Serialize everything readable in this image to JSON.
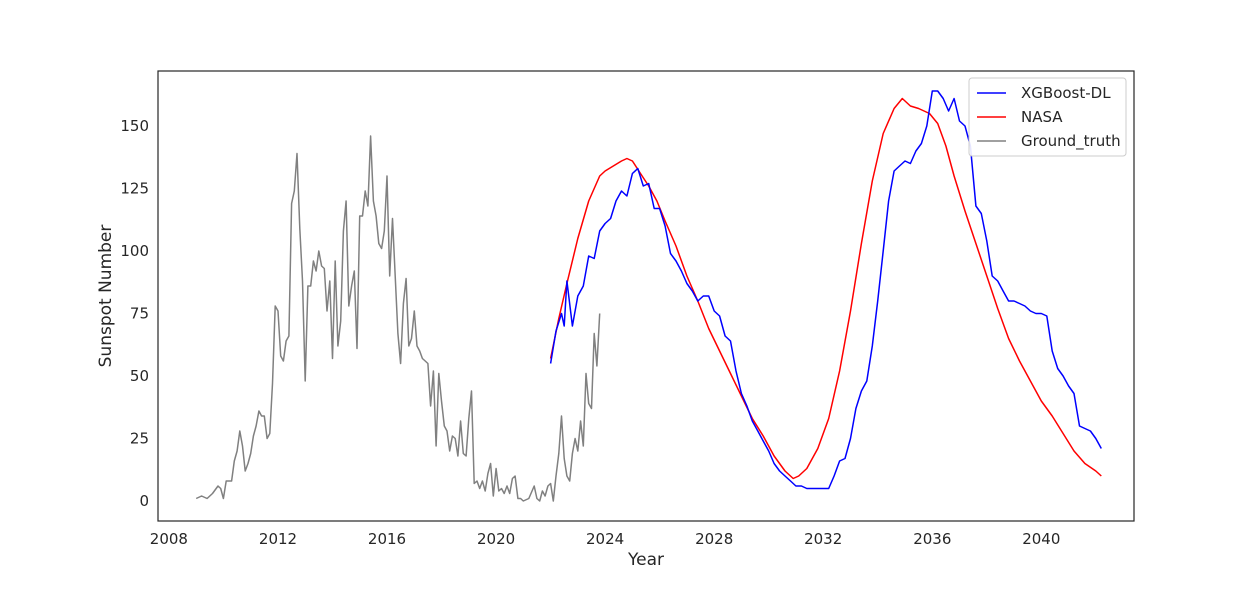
{
  "chart_data": {
    "type": "line",
    "title": "",
    "xlabel": "Year",
    "ylabel": "Sunspot Number",
    "xlim": [
      2007.6,
      2043.4
    ],
    "ylim": [
      -8,
      172
    ],
    "xticks": [
      2008,
      2012,
      2016,
      2020,
      2024,
      2028,
      2032,
      2036,
      2040
    ],
    "yticks": [
      0,
      25,
      50,
      75,
      100,
      125,
      150
    ],
    "grid": false,
    "legend_position": "top-right",
    "series": [
      {
        "name": "XGBoost-DL",
        "color": "#0000ff",
        "points": [
          [
            2022.0,
            55
          ],
          [
            2022.2,
            68
          ],
          [
            2022.4,
            75
          ],
          [
            2022.5,
            70
          ],
          [
            2022.6,
            88
          ],
          [
            2022.8,
            70
          ],
          [
            2023.0,
            82
          ],
          [
            2023.2,
            86
          ],
          [
            2023.4,
            98
          ],
          [
            2023.6,
            97
          ],
          [
            2023.8,
            108
          ],
          [
            2024.0,
            111
          ],
          [
            2024.2,
            113
          ],
          [
            2024.4,
            120
          ],
          [
            2024.6,
            124
          ],
          [
            2024.8,
            122
          ],
          [
            2025.0,
            131
          ],
          [
            2025.2,
            133
          ],
          [
            2025.4,
            126
          ],
          [
            2025.6,
            127
          ],
          [
            2025.8,
            117
          ],
          [
            2026.0,
            117
          ],
          [
            2026.2,
            110
          ],
          [
            2026.4,
            99
          ],
          [
            2026.6,
            96
          ],
          [
            2026.8,
            92
          ],
          [
            2027.0,
            87
          ],
          [
            2027.2,
            84
          ],
          [
            2027.4,
            80
          ],
          [
            2027.6,
            82
          ],
          [
            2027.8,
            82
          ],
          [
            2028.0,
            76
          ],
          [
            2028.2,
            74
          ],
          [
            2028.4,
            66
          ],
          [
            2028.6,
            64
          ],
          [
            2028.8,
            52
          ],
          [
            2029.0,
            43
          ],
          [
            2029.2,
            38
          ],
          [
            2029.4,
            32
          ],
          [
            2029.6,
            28
          ],
          [
            2029.8,
            24
          ],
          [
            2030.0,
            20
          ],
          [
            2030.2,
            15
          ],
          [
            2030.4,
            12
          ],
          [
            2030.6,
            10
          ],
          [
            2030.8,
            8
          ],
          [
            2031.0,
            6
          ],
          [
            2031.2,
            6
          ],
          [
            2031.4,
            5
          ],
          [
            2031.6,
            5
          ],
          [
            2031.8,
            5
          ],
          [
            2032.0,
            5
          ],
          [
            2032.2,
            5
          ],
          [
            2032.4,
            10
          ],
          [
            2032.6,
            16
          ],
          [
            2032.8,
            17
          ],
          [
            2033.0,
            25
          ],
          [
            2033.2,
            37
          ],
          [
            2033.4,
            44
          ],
          [
            2033.6,
            48
          ],
          [
            2033.8,
            62
          ],
          [
            2034.0,
            80
          ],
          [
            2034.2,
            100
          ],
          [
            2034.4,
            120
          ],
          [
            2034.6,
            132
          ],
          [
            2034.8,
            134
          ],
          [
            2035.0,
            136
          ],
          [
            2035.2,
            135
          ],
          [
            2035.4,
            140
          ],
          [
            2035.6,
            143
          ],
          [
            2035.8,
            150
          ],
          [
            2036.0,
            164
          ],
          [
            2036.2,
            164
          ],
          [
            2036.4,
            161
          ],
          [
            2036.6,
            156
          ],
          [
            2036.8,
            161
          ],
          [
            2037.0,
            152
          ],
          [
            2037.2,
            150
          ],
          [
            2037.4,
            142
          ],
          [
            2037.6,
            118
          ],
          [
            2037.8,
            115
          ],
          [
            2038.0,
            104
          ],
          [
            2038.2,
            90
          ],
          [
            2038.4,
            88
          ],
          [
            2038.6,
            84
          ],
          [
            2038.8,
            80
          ],
          [
            2039.0,
            80
          ],
          [
            2039.2,
            79
          ],
          [
            2039.4,
            78
          ],
          [
            2039.6,
            76
          ],
          [
            2039.8,
            75
          ],
          [
            2040.0,
            75
          ],
          [
            2040.2,
            74
          ],
          [
            2040.4,
            60
          ],
          [
            2040.6,
            53
          ],
          [
            2040.8,
            50
          ],
          [
            2041.0,
            46
          ],
          [
            2041.2,
            43
          ],
          [
            2041.4,
            30
          ],
          [
            2041.6,
            29
          ],
          [
            2041.8,
            28
          ],
          [
            2042.0,
            25
          ],
          [
            2042.2,
            21
          ]
        ]
      },
      {
        "name": "NASA",
        "color": "#ff0000",
        "points": [
          [
            2022.0,
            57
          ],
          [
            2022.3,
            73
          ],
          [
            2022.6,
            87
          ],
          [
            2023.0,
            105
          ],
          [
            2023.4,
            120
          ],
          [
            2023.8,
            130
          ],
          [
            2024.0,
            132
          ],
          [
            2024.3,
            134
          ],
          [
            2024.6,
            136
          ],
          [
            2024.8,
            137
          ],
          [
            2025.0,
            136
          ],
          [
            2025.3,
            131
          ],
          [
            2025.6,
            126
          ],
          [
            2025.9,
            120
          ],
          [
            2026.2,
            112
          ],
          [
            2026.6,
            102
          ],
          [
            2027.0,
            90
          ],
          [
            2027.4,
            80
          ],
          [
            2027.8,
            69
          ],
          [
            2028.2,
            60
          ],
          [
            2028.6,
            51
          ],
          [
            2029.0,
            42
          ],
          [
            2029.4,
            33
          ],
          [
            2029.8,
            26
          ],
          [
            2030.2,
            18
          ],
          [
            2030.6,
            12
          ],
          [
            2030.9,
            9
          ],
          [
            2031.1,
            10
          ],
          [
            2031.4,
            13
          ],
          [
            2031.8,
            21
          ],
          [
            2032.2,
            33
          ],
          [
            2032.6,
            52
          ],
          [
            2033.0,
            76
          ],
          [
            2033.4,
            103
          ],
          [
            2033.8,
            128
          ],
          [
            2034.2,
            147
          ],
          [
            2034.6,
            157
          ],
          [
            2034.9,
            161
          ],
          [
            2035.2,
            158
          ],
          [
            2035.5,
            157
          ],
          [
            2035.9,
            155
          ],
          [
            2036.2,
            151
          ],
          [
            2036.5,
            142
          ],
          [
            2036.8,
            130
          ],
          [
            2037.2,
            116
          ],
          [
            2037.6,
            103
          ],
          [
            2038.0,
            90
          ],
          [
            2038.4,
            77
          ],
          [
            2038.8,
            65
          ],
          [
            2039.2,
            56
          ],
          [
            2039.6,
            48
          ],
          [
            2040.0,
            40
          ],
          [
            2040.4,
            34
          ],
          [
            2040.8,
            27
          ],
          [
            2041.2,
            20
          ],
          [
            2041.6,
            15
          ],
          [
            2042.0,
            12
          ],
          [
            2042.2,
            10
          ]
        ]
      },
      {
        "name": "Ground_truth",
        "color": "#808080",
        "points": [
          [
            2009.0,
            1
          ],
          [
            2009.2,
            2
          ],
          [
            2009.4,
            1
          ],
          [
            2009.6,
            3
          ],
          [
            2009.8,
            6
          ],
          [
            2009.9,
            5
          ],
          [
            2010.0,
            1
          ],
          [
            2010.1,
            8
          ],
          [
            2010.3,
            8
          ],
          [
            2010.4,
            16
          ],
          [
            2010.5,
            20
          ],
          [
            2010.6,
            28
          ],
          [
            2010.7,
            22
          ],
          [
            2010.8,
            12
          ],
          [
            2010.9,
            15
          ],
          [
            2011.0,
            19
          ],
          [
            2011.1,
            26
          ],
          [
            2011.2,
            30
          ],
          [
            2011.3,
            36
          ],
          [
            2011.4,
            34
          ],
          [
            2011.5,
            34
          ],
          [
            2011.6,
            25
          ],
          [
            2011.7,
            27
          ],
          [
            2011.8,
            47
          ],
          [
            2011.9,
            78
          ],
          [
            2012.0,
            76
          ],
          [
            2012.1,
            58
          ],
          [
            2012.2,
            56
          ],
          [
            2012.3,
            64
          ],
          [
            2012.4,
            66
          ],
          [
            2012.5,
            119
          ],
          [
            2012.6,
            124
          ],
          [
            2012.7,
            139
          ],
          [
            2012.8,
            109
          ],
          [
            2012.9,
            88
          ],
          [
            2013.0,
            48
          ],
          [
            2013.1,
            86
          ],
          [
            2013.2,
            86
          ],
          [
            2013.3,
            96
          ],
          [
            2013.4,
            92
          ],
          [
            2013.5,
            100
          ],
          [
            2013.6,
            94
          ],
          [
            2013.7,
            93
          ],
          [
            2013.8,
            76
          ],
          [
            2013.9,
            88
          ],
          [
            2014.0,
            57
          ],
          [
            2014.1,
            96
          ],
          [
            2014.2,
            62
          ],
          [
            2014.3,
            72
          ],
          [
            2014.4,
            108
          ],
          [
            2014.5,
            120
          ],
          [
            2014.6,
            78
          ],
          [
            2014.7,
            86
          ],
          [
            2014.8,
            92
          ],
          [
            2014.9,
            61
          ],
          [
            2015.0,
            114
          ],
          [
            2015.1,
            114
          ],
          [
            2015.2,
            124
          ],
          [
            2015.3,
            118
          ],
          [
            2015.4,
            146
          ],
          [
            2015.5,
            120
          ],
          [
            2015.6,
            114
          ],
          [
            2015.7,
            103
          ],
          [
            2015.8,
            101
          ],
          [
            2015.9,
            108
          ],
          [
            2016.0,
            130
          ],
          [
            2016.1,
            90
          ],
          [
            2016.2,
            113
          ],
          [
            2016.3,
            90
          ],
          [
            2016.4,
            67
          ],
          [
            2016.5,
            55
          ],
          [
            2016.6,
            79
          ],
          [
            2016.7,
            89
          ],
          [
            2016.8,
            62
          ],
          [
            2016.9,
            65
          ],
          [
            2017.0,
            76
          ],
          [
            2017.1,
            62
          ],
          [
            2017.2,
            60
          ],
          [
            2017.3,
            57
          ],
          [
            2017.4,
            56
          ],
          [
            2017.5,
            55
          ],
          [
            2017.6,
            38
          ],
          [
            2017.7,
            52
          ],
          [
            2017.8,
            22
          ],
          [
            2017.9,
            51
          ],
          [
            2018.0,
            40
          ],
          [
            2018.1,
            30
          ],
          [
            2018.2,
            28
          ],
          [
            2018.3,
            20
          ],
          [
            2018.4,
            26
          ],
          [
            2018.5,
            25
          ],
          [
            2018.6,
            18
          ],
          [
            2018.7,
            32
          ],
          [
            2018.8,
            19
          ],
          [
            2018.9,
            18
          ],
          [
            2019.0,
            33
          ],
          [
            2019.1,
            44
          ],
          [
            2019.2,
            7
          ],
          [
            2019.3,
            8
          ],
          [
            2019.4,
            5
          ],
          [
            2019.5,
            8
          ],
          [
            2019.6,
            4
          ],
          [
            2019.7,
            11
          ],
          [
            2019.8,
            15
          ],
          [
            2019.9,
            2
          ],
          [
            2020.0,
            13
          ],
          [
            2020.1,
            4
          ],
          [
            2020.2,
            5
          ],
          [
            2020.3,
            3
          ],
          [
            2020.4,
            6
          ],
          [
            2020.5,
            3
          ],
          [
            2020.6,
            9
          ],
          [
            2020.7,
            10
          ],
          [
            2020.8,
            1
          ],
          [
            2020.9,
            1
          ],
          [
            2021.0,
            0
          ],
          [
            2021.2,
            1
          ],
          [
            2021.4,
            6
          ],
          [
            2021.5,
            1
          ],
          [
            2021.6,
            0
          ],
          [
            2021.7,
            4
          ],
          [
            2021.8,
            2
          ],
          [
            2021.9,
            6
          ],
          [
            2022.0,
            7
          ],
          [
            2022.1,
            0
          ],
          [
            2022.2,
            10
          ],
          [
            2022.3,
            19
          ],
          [
            2022.4,
            34
          ],
          [
            2022.5,
            17
          ],
          [
            2022.6,
            10
          ],
          [
            2022.7,
            8
          ],
          [
            2022.8,
            19
          ],
          [
            2022.9,
            25
          ],
          [
            2023.0,
            20
          ],
          [
            2023.1,
            32
          ],
          [
            2023.2,
            22
          ],
          [
            2023.3,
            51
          ],
          [
            2023.4,
            39
          ],
          [
            2023.5,
            37
          ],
          [
            2023.6,
            67
          ],
          [
            2023.7,
            54
          ],
          [
            2023.8,
            75
          ]
        ]
      }
    ]
  }
}
